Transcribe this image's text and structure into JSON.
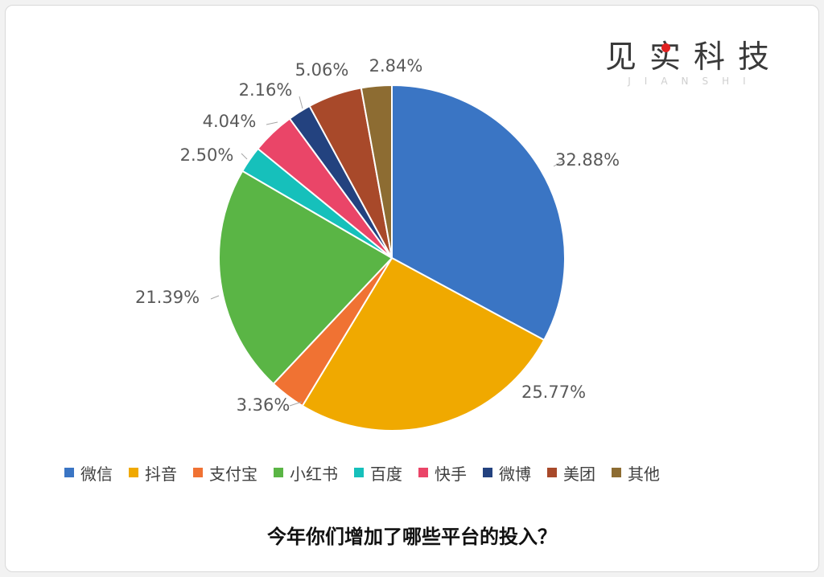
{
  "logo": {
    "main": "见实科技",
    "sub": "JIANSHI"
  },
  "caption": "今年你们增加了哪些平台的投入？",
  "chart_data": {
    "type": "pie",
    "title": "",
    "start_angle_deg": 0,
    "direction": "clockwise",
    "legend_position": "bottom",
    "slices": [
      {
        "name": "微信",
        "value": 32.88,
        "label": "32.88%",
        "color": "#3a75c4"
      },
      {
        "name": "抖音",
        "value": 25.77,
        "label": "25.77%",
        "color": "#f0a900"
      },
      {
        "name": "支付宝",
        "value": 3.36,
        "label": "3.36%",
        "color": "#f07233"
      },
      {
        "name": "小红书",
        "value": 21.39,
        "label": "21.39%",
        "color": "#5ab545"
      },
      {
        "name": "百度",
        "value": 2.5,
        "label": "2.50%",
        "color": "#16c0bb"
      },
      {
        "name": "快手",
        "value": 4.04,
        "label": "4.04%",
        "color": "#ea4568"
      },
      {
        "name": "微博",
        "value": 2.16,
        "label": "2.16%",
        "color": "#23427f"
      },
      {
        "name": "美团",
        "value": 5.06,
        "label": "5.06%",
        "color": "#a8492a"
      },
      {
        "name": "其他",
        "value": 2.84,
        "label": "2.84%",
        "color": "#8d6c32"
      }
    ]
  }
}
